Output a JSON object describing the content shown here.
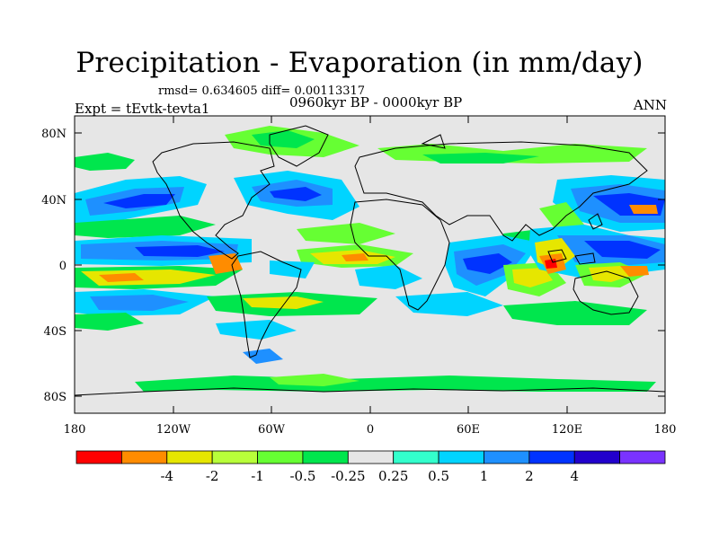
{
  "title": "Precipitation - Evaporation (in mm/day)",
  "stats": "rmsd= 0.634605 diff= 0.00113317",
  "experiment": "Expt = tEvtk-tevta1",
  "period": "0960kyr BP - 0000kyr BP",
  "season": "ANN",
  "lat_labels": [
    "80N",
    "40N",
    "0",
    "40S",
    "80S"
  ],
  "lon_labels": [
    "180",
    "120W",
    "60W",
    "0",
    "60E",
    "120E",
    "180"
  ],
  "colorbar": {
    "colors": [
      "#ff0000",
      "#ff8c00",
      "#e6e600",
      "#b8ff3a",
      "#66ff33",
      "#00e64d",
      "#e6e6e6",
      "#33ffcc",
      "#00d4ff",
      "#1e90ff",
      "#0033ff",
      "#2200cc",
      "#7a33ff"
    ],
    "labels": [
      "-4",
      "-2",
      "-1",
      "-0.5",
      "-0.25",
      "0.25",
      "0.5",
      "1",
      "2",
      "4"
    ]
  }
}
